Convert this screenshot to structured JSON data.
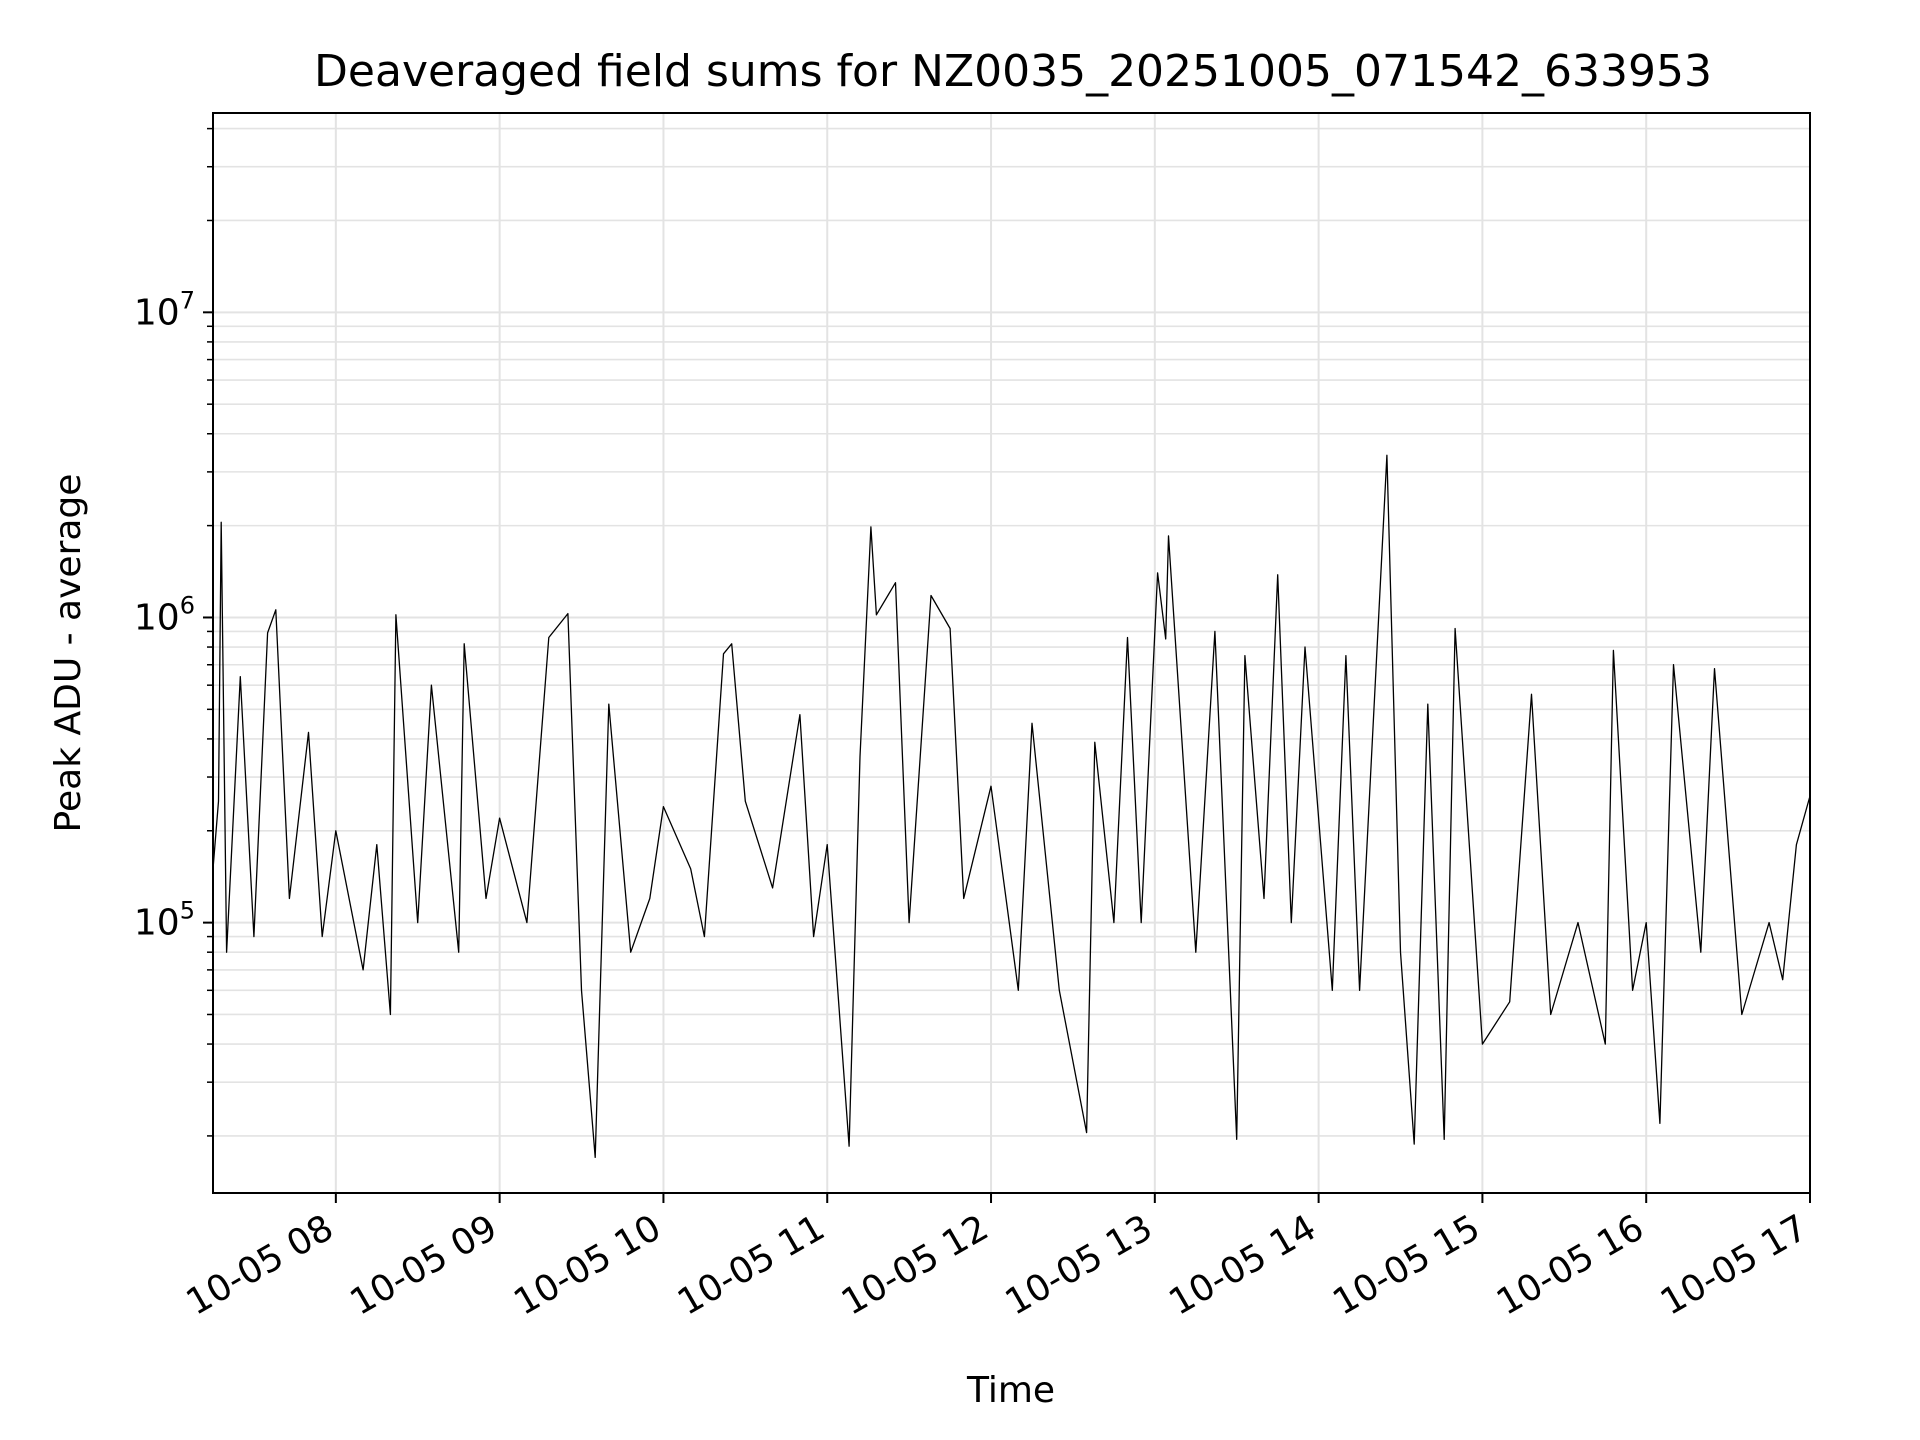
{
  "chart_data": {
    "type": "line",
    "title": "Deaveraged field sums for NZ0035_20251005_071542_633953",
    "xlabel": "Time",
    "ylabel": "Peak ADU - average",
    "y_scale": "log",
    "ylim": [
      13000,
      45000000
    ],
    "xlim": [
      "10-05 07:15",
      "10-05 17:00"
    ],
    "grid": true,
    "line_color": "#000000",
    "grid_color": "#e3e3e3",
    "x_ticks": [
      "10-05 08",
      "10-05 09",
      "10-05 10",
      "10-05 11",
      "10-05 12",
      "10-05 13",
      "10-05 14",
      "10-05 15",
      "10-05 16",
      "10-05 17"
    ],
    "y_ticks": [
      {
        "value": 100000,
        "base": "10",
        "exp": "5"
      },
      {
        "value": 1000000,
        "base": "10",
        "exp": "6"
      },
      {
        "value": 10000000,
        "base": "10",
        "exp": "7"
      }
    ],
    "series": [
      {
        "points": [
          [
            "10-05 07:15",
            150000
          ],
          [
            "10-05 07:17",
            250000
          ],
          [
            "10-05 07:18",
            2050000
          ],
          [
            "10-05 07:20",
            80000
          ],
          [
            "10-05 07:25",
            640000
          ],
          [
            "10-05 07:30",
            90000
          ],
          [
            "10-05 07:35",
            890000
          ],
          [
            "10-05 07:38",
            1060000
          ],
          [
            "10-05 07:43",
            120000
          ],
          [
            "10-05 07:50",
            420000
          ],
          [
            "10-05 07:55",
            90000
          ],
          [
            "10-05 08:00",
            200000
          ],
          [
            "10-05 08:10",
            70000
          ],
          [
            "10-05 08:15",
            180000
          ],
          [
            "10-05 08:20",
            50000
          ],
          [
            "10-05 08:22",
            1020000
          ],
          [
            "10-05 08:30",
            100000
          ],
          [
            "10-05 08:35",
            600000
          ],
          [
            "10-05 08:45",
            80000
          ],
          [
            "10-05 08:47",
            820000
          ],
          [
            "10-05 08:55",
            120000
          ],
          [
            "10-05 09:00",
            220000
          ],
          [
            "10-05 09:10",
            100000
          ],
          [
            "10-05 09:18",
            860000
          ],
          [
            "10-05 09:25",
            1030000
          ],
          [
            "10-05 09:30",
            60000
          ],
          [
            "10-05 09:35",
            17000
          ],
          [
            "10-05 09:40",
            520000
          ],
          [
            "10-05 09:48",
            80000
          ],
          [
            "10-05 09:55",
            120000
          ],
          [
            "10-05 10:00",
            240000
          ],
          [
            "10-05 10:10",
            150000
          ],
          [
            "10-05 10:15",
            90000
          ],
          [
            "10-05 10:22",
            760000
          ],
          [
            "10-05 10:25",
            820000
          ],
          [
            "10-05 10:30",
            250000
          ],
          [
            "10-05 10:40",
            130000
          ],
          [
            "10-05 10:50",
            480000
          ],
          [
            "10-05 10:55",
            90000
          ],
          [
            "10-05 11:00",
            180000
          ],
          [
            "10-05 11:08",
            18500
          ],
          [
            "10-05 11:12",
            350000
          ],
          [
            "10-05 11:16",
            1980000
          ],
          [
            "10-05 11:18",
            1020000
          ],
          [
            "10-05 11:25",
            1300000
          ],
          [
            "10-05 11:30",
            100000
          ],
          [
            "10-05 11:38",
            1180000
          ],
          [
            "10-05 11:45",
            920000
          ],
          [
            "10-05 11:50",
            120000
          ],
          [
            "10-05 12:00",
            280000
          ],
          [
            "10-05 12:10",
            60000
          ],
          [
            "10-05 12:15",
            450000
          ],
          [
            "10-05 12:25",
            60000
          ],
          [
            "10-05 12:35",
            20500
          ],
          [
            "10-05 12:38",
            390000
          ],
          [
            "10-05 12:45",
            100000
          ],
          [
            "10-05 12:50",
            860000
          ],
          [
            "10-05 12:55",
            100000
          ],
          [
            "10-05 13:01",
            1400000
          ],
          [
            "10-05 13:04",
            850000
          ],
          [
            "10-05 13:05",
            1850000
          ],
          [
            "10-05 13:15",
            80000
          ],
          [
            "10-05 13:22",
            900000
          ],
          [
            "10-05 13:30",
            19500
          ],
          [
            "10-05 13:33",
            750000
          ],
          [
            "10-05 13:40",
            120000
          ],
          [
            "10-05 13:45",
            1380000
          ],
          [
            "10-05 13:50",
            100000
          ],
          [
            "10-05 13:55",
            800000
          ],
          [
            "10-05 14:05",
            60000
          ],
          [
            "10-05 14:10",
            750000
          ],
          [
            "10-05 14:15",
            60000
          ],
          [
            "10-05 14:25",
            3400000
          ],
          [
            "10-05 14:30",
            80000
          ],
          [
            "10-05 14:35",
            18800
          ],
          [
            "10-05 14:40",
            520000
          ],
          [
            "10-05 14:46",
            19500
          ],
          [
            "10-05 14:50",
            920000
          ],
          [
            "10-05 15:00",
            40000
          ],
          [
            "10-05 15:10",
            55000
          ],
          [
            "10-05 15:18",
            560000
          ],
          [
            "10-05 15:25",
            50000
          ],
          [
            "10-05 15:35",
            100000
          ],
          [
            "10-05 15:45",
            40000
          ],
          [
            "10-05 15:48",
            780000
          ],
          [
            "10-05 15:55",
            60000
          ],
          [
            "10-05 16:00",
            100000
          ],
          [
            "10-05 16:05",
            22000
          ],
          [
            "10-05 16:10",
            700000
          ],
          [
            "10-05 16:20",
            80000
          ],
          [
            "10-05 16:25",
            680000
          ],
          [
            "10-05 16:35",
            50000
          ],
          [
            "10-05 16:45",
            100000
          ],
          [
            "10-05 16:50",
            65000
          ],
          [
            "10-05 16:55",
            180000
          ],
          [
            "10-05 17:00",
            260000
          ]
        ]
      }
    ]
  }
}
